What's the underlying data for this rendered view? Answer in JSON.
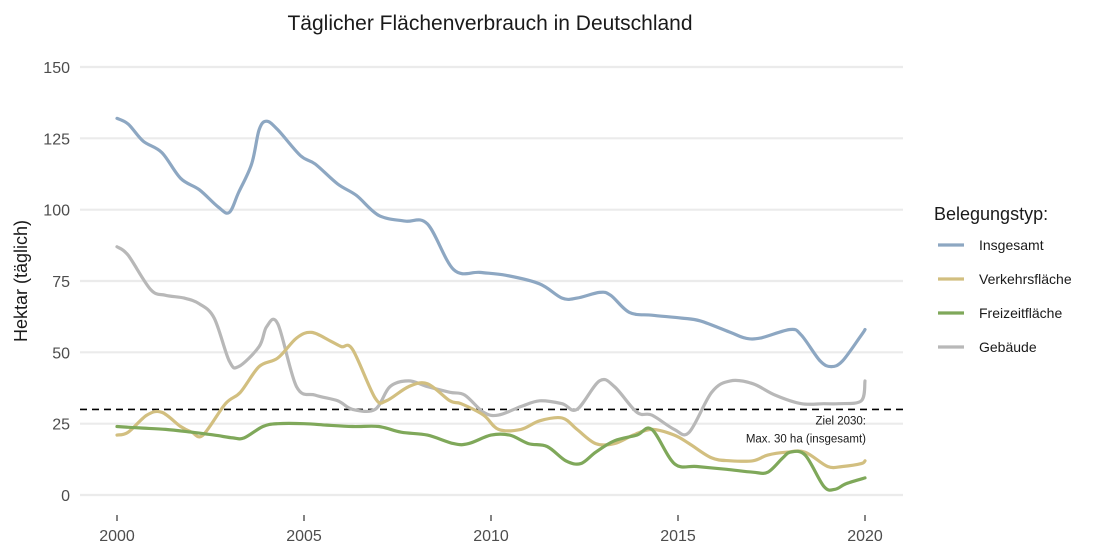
{
  "chart_data": {
    "type": "line",
    "title": "Täglicher Flächenverbrauch in Deutschland",
    "xlabel": "",
    "ylabel": "Hektar (täglich)",
    "xlim": [
      1999.2,
      2020.7
    ],
    "ylim": [
      0,
      150
    ],
    "x_ticks": [
      2000,
      2005,
      2010,
      2015,
      2020
    ],
    "x_tick_labels": [
      "2000",
      "2005",
      "2010",
      "2015",
      "2020"
    ],
    "y_ticks": [
      0,
      25,
      50,
      75,
      100,
      125,
      150
    ],
    "y_tick_labels": [
      "0",
      "25",
      "50",
      "75",
      "100",
      "125",
      "150"
    ],
    "grid": true,
    "legend": {
      "title": "Belegungstyp:",
      "position": "right"
    },
    "reference_line": {
      "y": 30,
      "style": "dashed",
      "color": "#000000",
      "annotation_line1": "Ziel 2030:",
      "annotation_line2": "Max. 30 ha (insgesamt)"
    },
    "series": [
      {
        "name": "Insgesamt",
        "color": "#8da7c2",
        "x": [
          2000,
          2000.3,
          2000.7,
          2001.2,
          2001.7,
          2002.2,
          2002.7,
          2003.0,
          2003.25,
          2003.6,
          2003.8,
          2004.0,
          2004.3,
          2004.9,
          2005.3,
          2005.9,
          2006.4,
          2007.0,
          2007.7,
          2008.3,
          2009.0,
          2009.7,
          2010.4,
          2011.3,
          2011.9,
          2012.3,
          2012.9,
          2013.2,
          2013.7,
          2014.3,
          2015.1,
          2015.6,
          2016.4,
          2016.8,
          2017.2,
          2018.0,
          2018.3,
          2018.8,
          2019.1,
          2019.4,
          2019.9,
          2020.0
        ],
        "values": [
          132,
          130,
          124,
          120,
          111,
          107,
          101,
          99,
          106,
          116,
          128,
          131,
          128,
          119,
          116,
          109,
          105,
          98,
          96,
          95,
          79,
          78,
          77,
          74,
          69,
          69,
          71,
          70,
          64,
          63,
          62,
          61,
          57,
          55,
          55,
          58,
          56,
          47,
          45,
          47,
          56,
          58
        ]
      },
      {
        "name": "Verkehrsfläche",
        "color": "#d2bf80",
        "x": [
          2000,
          2000.3,
          2000.8,
          2001.2,
          2001.7,
          2002.0,
          2002.3,
          2002.9,
          2003.3,
          2003.8,
          2004.3,
          2004.8,
          2005.2,
          2005.7,
          2006.0,
          2006.3,
          2006.9,
          2007.2,
          2007.8,
          2008.3,
          2008.9,
          2009.2,
          2009.8,
          2010.2,
          2010.8,
          2011.3,
          2011.9,
          2012.3,
          2012.8,
          2013.3,
          2013.8,
          2014.3,
          2014.9,
          2015.3,
          2015.9,
          2016.4,
          2017.0,
          2017.4,
          2017.9,
          2018.4,
          2019.0,
          2019.4,
          2019.9,
          2020.0
        ],
        "values": [
          21,
          22,
          28,
          29,
          24,
          22,
          21,
          32,
          36,
          45,
          48,
          55,
          57,
          54,
          52,
          51,
          34,
          33,
          38,
          39,
          33,
          32,
          28,
          23,
          23,
          26,
          27,
          23,
          18,
          18,
          21,
          23,
          21,
          18,
          13,
          12,
          12,
          14,
          15,
          15,
          10,
          10,
          11,
          12
        ]
      },
      {
        "name": "Freizeitfläche",
        "color": "#7fa85a",
        "x": [
          2000,
          2000.6,
          2001.3,
          2002.0,
          2002.6,
          2003.1,
          2003.4,
          2003.9,
          2004.3,
          2005.0,
          2005.6,
          2006.3,
          2007.0,
          2007.6,
          2008.3,
          2009.0,
          2009.4,
          2010.0,
          2010.5,
          2011.0,
          2011.5,
          2012.0,
          2012.4,
          2012.8,
          2013.3,
          2013.9,
          2014.3,
          2014.9,
          2015.5,
          2016.3,
          2017.0,
          2017.4,
          2017.8,
          2018.0,
          2018.4,
          2018.9,
          2019.2,
          2019.5,
          2020.0
        ],
        "values": [
          24,
          23.5,
          23,
          22,
          21,
          20,
          20,
          24,
          25,
          25,
          24.5,
          24,
          24,
          22,
          21,
          18,
          18,
          21,
          21,
          18,
          17,
          12,
          11,
          15,
          19,
          21,
          23,
          11,
          10,
          9,
          8,
          8,
          13,
          15,
          14,
          3,
          2,
          4,
          6
        ]
      },
      {
        "name": "Gebäude",
        "color": "#b8b8b8",
        "x": [
          2000,
          2000.3,
          2000.9,
          2001.3,
          2001.8,
          2002.2,
          2002.6,
          2003.0,
          2003.25,
          2003.8,
          2004.0,
          2004.3,
          2004.8,
          2005.3,
          2005.9,
          2006.3,
          2006.9,
          2007.3,
          2007.8,
          2008.3,
          2008.9,
          2009.3,
          2009.8,
          2010.2,
          2010.8,
          2011.3,
          2011.9,
          2012.3,
          2012.9,
          2013.3,
          2013.9,
          2014.3,
          2014.9,
          2015.3,
          2015.9,
          2016.4,
          2017.0,
          2017.6,
          2018.3,
          2018.9,
          2019.3,
          2019.9,
          2020.0
        ],
        "values": [
          87,
          84,
          72,
          70,
          69,
          67,
          62,
          47,
          45,
          52,
          59,
          60,
          38,
          35,
          33,
          30,
          30,
          38,
          40,
          38,
          36,
          35,
          29,
          28,
          31,
          33,
          32,
          30,
          40,
          38,
          29,
          28,
          23,
          22,
          36,
          40,
          39,
          35,
          32,
          32,
          32,
          33,
          40
        ]
      }
    ]
  }
}
